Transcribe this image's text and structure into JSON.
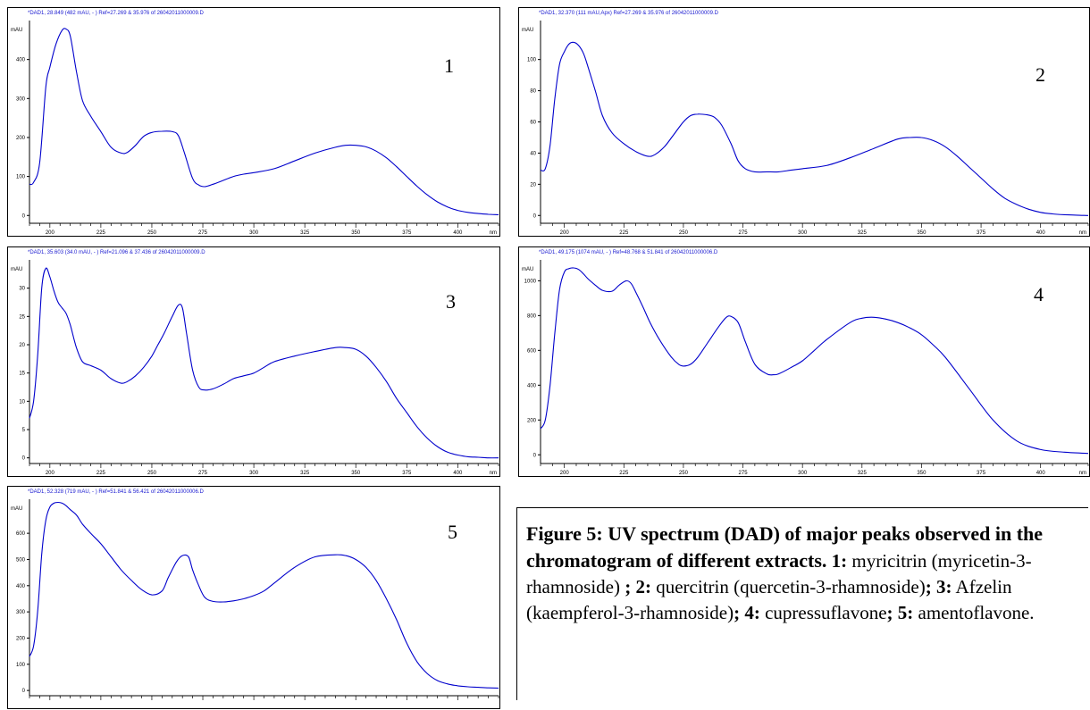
{
  "chart_data": [
    {
      "type": "line",
      "panel_number": "1",
      "header": "*DAD1, 28.849 (482 mAU, - ) Ref=27.269 & 35.976 of 26042011000009.D",
      "ylabel": "mAU",
      "xlabel": "nm",
      "xlim": [
        190,
        420
      ],
      "ylim": [
        -20,
        500
      ],
      "xticks": [
        200,
        225,
        250,
        275,
        300,
        325,
        350,
        375,
        400
      ],
      "yticks": [
        0,
        100,
        200,
        300,
        400
      ],
      "x": [
        190,
        192,
        195,
        198,
        200,
        203,
        206,
        208,
        210,
        213,
        216,
        220,
        225,
        230,
        235,
        238,
        242,
        246,
        250,
        255,
        260,
        263,
        266,
        270,
        273,
        276,
        280,
        285,
        290,
        295,
        300,
        310,
        320,
        330,
        340,
        345,
        350,
        355,
        360,
        365,
        370,
        375,
        380,
        385,
        390,
        395,
        400,
        405,
        410,
        415,
        420
      ],
      "values": [
        80,
        85,
        135,
        330,
        380,
        440,
        475,
        478,
        460,
        370,
        295,
        255,
        215,
        175,
        160,
        162,
        180,
        203,
        213,
        216,
        215,
        205,
        160,
        95,
        78,
        74,
        80,
        90,
        100,
        106,
        110,
        120,
        140,
        160,
        175,
        180,
        180,
        176,
        165,
        148,
        125,
        100,
        75,
        53,
        35,
        22,
        13,
        8,
        5,
        3,
        2
      ],
      "color": "#0000cc"
    },
    {
      "type": "line",
      "panel_number": "2",
      "header": "*DAD1, 32.370 (111 mAU,Apx) Ref=27.269 & 35.976 of 26042011000009.D",
      "ylabel": "mAU",
      "xlabel": "nm",
      "xlim": [
        190,
        420
      ],
      "ylim": [
        -5,
        125
      ],
      "xticks": [
        200,
        225,
        250,
        275,
        300,
        325,
        350,
        375,
        400
      ],
      "yticks": [
        0,
        20,
        40,
        60,
        80,
        100
      ],
      "x": [
        190,
        192,
        194,
        196,
        198,
        200,
        202,
        204,
        206,
        208,
        210,
        213,
        216,
        220,
        225,
        230,
        235,
        238,
        242,
        246,
        250,
        253,
        256,
        260,
        263,
        266,
        270,
        273,
        276,
        280,
        285,
        290,
        295,
        300,
        310,
        320,
        330,
        340,
        345,
        350,
        355,
        360,
        365,
        370,
        375,
        380,
        385,
        390,
        395,
        400,
        405,
        410,
        415,
        420
      ],
      "values": [
        29,
        30,
        45,
        75,
        97,
        105,
        110,
        111,
        109,
        104,
        95,
        80,
        64,
        53,
        46,
        41,
        38,
        39,
        44,
        52,
        60,
        64,
        65,
        64.5,
        63,
        58,
        46,
        35,
        30,
        28,
        28,
        28,
        29,
        30,
        32,
        37,
        43,
        49,
        50,
        50,
        48,
        44,
        38,
        31,
        24,
        17,
        11,
        7,
        4,
        2,
        1,
        0.5,
        0.2,
        0
      ],
      "color": "#0000cc"
    },
    {
      "type": "line",
      "panel_number": "3",
      "header": "*DAD1, 35.603 (34.0 mAU, - ) Ref=21.096 & 37.436 of 26042011000009.D",
      "ylabel": "mAU",
      "xlabel": "nm",
      "xlim": [
        190,
        420
      ],
      "ylim": [
        -1,
        35
      ],
      "xticks": [
        200,
        225,
        250,
        275,
        300,
        325,
        350,
        375,
        400
      ],
      "yticks": [
        0,
        5,
        10,
        15,
        20,
        25,
        30
      ],
      "x": [
        190,
        192,
        194,
        196,
        198,
        200,
        202,
        204,
        206,
        208,
        210,
        213,
        216,
        220,
        225,
        230,
        235,
        238,
        242,
        246,
        250,
        253,
        256,
        260,
        263,
        265,
        267,
        270,
        273,
        276,
        280,
        285,
        290,
        295,
        300,
        305,
        310,
        320,
        330,
        340,
        345,
        350,
        355,
        360,
        365,
        370,
        375,
        380,
        385,
        390,
        395,
        400,
        405,
        410,
        415,
        420
      ],
      "values": [
        7,
        10,
        18,
        30,
        33.5,
        32,
        29.5,
        27.5,
        26.5,
        25.5,
        23.5,
        19.5,
        17,
        16.3,
        15.5,
        14,
        13.2,
        13.5,
        14.5,
        16,
        18,
        20,
        22,
        25,
        27,
        26.5,
        22,
        15.5,
        12.5,
        12,
        12.2,
        13,
        14,
        14.5,
        15,
        16,
        17,
        18,
        18.8,
        19.5,
        19.5,
        19.2,
        18,
        16,
        13.5,
        10.5,
        8,
        5.5,
        3.5,
        2,
        1,
        0.5,
        0.2,
        0.1,
        0,
        0
      ],
      "color": "#0000cc"
    },
    {
      "type": "line",
      "panel_number": "4",
      "header": "*DAD1, 49.175 (1074 mAU, - ) Ref=48.768 & 51.841 of 26042011000006.D",
      "ylabel": "mAU",
      "xlabel": "nm",
      "xlim": [
        190,
        420
      ],
      "ylim": [
        -50,
        1120
      ],
      "xticks": [
        200,
        225,
        250,
        275,
        300,
        325,
        350,
        375,
        400
      ],
      "yticks": [
        0,
        200,
        400,
        600,
        800,
        1000
      ],
      "x": [
        190,
        192,
        194,
        196,
        198,
        200,
        202,
        204,
        206,
        208,
        210,
        213,
        216,
        220,
        223,
        226,
        228,
        230,
        233,
        236,
        240,
        245,
        248,
        250,
        253,
        256,
        260,
        265,
        268,
        270,
        273,
        276,
        280,
        285,
        288,
        290,
        295,
        300,
        305,
        310,
        320,
        325,
        330,
        335,
        340,
        345,
        350,
        355,
        360,
        370,
        380,
        390,
        400,
        410,
        420
      ],
      "values": [
        150,
        200,
        400,
        700,
        950,
        1050,
        1070,
        1074,
        1065,
        1040,
        1010,
        975,
        945,
        940,
        975,
        1000,
        985,
        935,
        850,
        760,
        660,
        560,
        520,
        510,
        520,
        560,
        640,
        740,
        790,
        795,
        760,
        650,
        520,
        465,
        460,
        465,
        500,
        540,
        600,
        660,
        760,
        785,
        790,
        780,
        760,
        730,
        690,
        630,
        560,
        380,
        200,
        80,
        30,
        15,
        8
      ],
      "color": "#0000cc"
    },
    {
      "type": "line",
      "panel_number": "5",
      "header": "*DAD1, 52.328 (719 mAU, - ) Ref=51.841 & 56.421 of 26042011000006.D",
      "ylabel": "mAU",
      "xlabel": "",
      "xlim": [
        190,
        420
      ],
      "ylim": [
        -20,
        730
      ],
      "xticks": [],
      "yticks": [
        0,
        100,
        200,
        300,
        400,
        500,
        600
      ],
      "x": [
        190,
        192,
        194,
        196,
        198,
        200,
        202,
        204,
        206,
        208,
        210,
        213,
        216,
        220,
        225,
        230,
        235,
        240,
        245,
        250,
        255,
        258,
        262,
        265,
        268,
        270,
        273,
        276,
        280,
        285,
        290,
        295,
        300,
        305,
        310,
        320,
        330,
        340,
        345,
        350,
        355,
        360,
        365,
        370,
        375,
        380,
        385,
        390,
        395,
        400,
        405,
        410,
        415,
        420
      ],
      "values": [
        130,
        170,
        300,
        520,
        650,
        700,
        715,
        718,
        715,
        705,
        690,
        670,
        635,
        600,
        560,
        510,
        460,
        420,
        385,
        365,
        380,
        430,
        490,
        515,
        510,
        460,
        400,
        355,
        340,
        338,
        342,
        350,
        362,
        380,
        410,
        470,
        510,
        518,
        515,
        500,
        470,
        420,
        350,
        270,
        180,
        110,
        65,
        38,
        25,
        18,
        14,
        12,
        10,
        9
      ],
      "color": "#0000cc"
    }
  ],
  "caption": {
    "title": "Figure 5:  UV spectrum (DAD) of major peaks observed in the chromatogram of different extracts.",
    "items": [
      {
        "num": " 1",
        "sep": ":",
        "text": " myricitrin (myricetin-3-rhamnoside) ",
        "end": ";"
      },
      {
        "num": " 2",
        "sep": ":",
        "text": " quercitrin (quercetin-3-rhamnoside)",
        "end": ";"
      },
      {
        "num": " 3",
        "sep": ":",
        "text": " Afzelin (kaempferol-3-rhamnoside)",
        "end": ";"
      },
      {
        "num": " 4",
        "sep": ":",
        "text": " cupressuflavone",
        "end": ";"
      },
      {
        "num": " 5",
        "sep": ":",
        "text": " amentoflavone.",
        "end": ""
      }
    ]
  }
}
